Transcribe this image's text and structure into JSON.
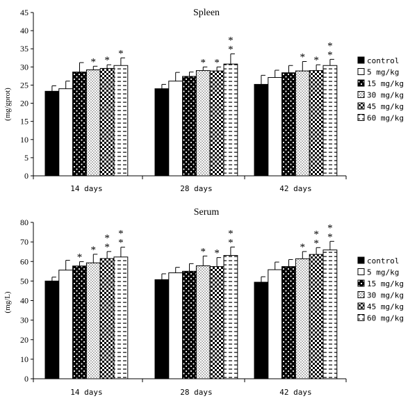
{
  "chart_data": [
    {
      "type": "bar",
      "title": "Spleen",
      "ylabel": "(mg/gprot)",
      "xlabel": "",
      "ylim": [
        0,
        45
      ],
      "yticks": [
        "0",
        "5",
        "10",
        "15",
        "20",
        "25",
        "30",
        "35",
        "40",
        "45"
      ],
      "categories": [
        "14 days",
        "28 days",
        "42 days"
      ],
      "legend": "right",
      "grid": false,
      "series": [
        {
          "name": "control",
          "values": [
            23.3,
            24.0,
            25.2
          ],
          "errors": [
            1.5,
            1.2,
            2.5
          ],
          "stars": [
            0,
            0,
            0
          ],
          "pattern": "black"
        },
        {
          "name": "5 mg/kg",
          "values": [
            24.0,
            26.1,
            27.1
          ],
          "errors": [
            2.1,
            2.4,
            2.0
          ],
          "stars": [
            0,
            0,
            0
          ],
          "pattern": "white"
        },
        {
          "name": "15 mg/kg",
          "values": [
            28.6,
            27.4,
            28.4
          ],
          "errors": [
            2.6,
            1.2,
            2.0
          ],
          "stars": [
            0,
            0,
            0
          ],
          "pattern": "dots"
        },
        {
          "name": "30 mg/kg",
          "values": [
            29.2,
            29.0,
            28.9
          ],
          "errors": [
            1.0,
            1.0,
            2.6
          ],
          "stars": [
            1,
            1,
            1
          ],
          "pattern": "fine"
        },
        {
          "name": "45 mg/kg",
          "values": [
            29.6,
            28.9,
            29.0
          ],
          "errors": [
            1.0,
            1.1,
            1.6
          ],
          "stars": [
            1,
            1,
            1
          ],
          "pattern": "check"
        },
        {
          "name": "60 mg/kg",
          "values": [
            30.4,
            30.8,
            30.4
          ],
          "errors": [
            2.1,
            2.8,
            1.7
          ],
          "stars": [
            1,
            2,
            2
          ],
          "pattern": "dash"
        }
      ]
    },
    {
      "type": "bar",
      "title": "Serum",
      "ylabel": "(mg/L)",
      "xlabel": "",
      "ylim": [
        0,
        80
      ],
      "yticks": [
        "0",
        "10",
        "20",
        "30",
        "40",
        "50",
        "60",
        "70",
        "80"
      ],
      "categories": [
        "14 days",
        "28 days",
        "42 days"
      ],
      "legend": "right",
      "grid": false,
      "series": [
        {
          "name": "control",
          "values": [
            50.0,
            50.7,
            49.4
          ],
          "errors": [
            2.0,
            3.0,
            2.8
          ],
          "stars": [
            0,
            0,
            0
          ],
          "pattern": "black"
        },
        {
          "name": "5 mg/kg",
          "values": [
            55.6,
            54.2,
            55.8
          ],
          "errors": [
            5.0,
            2.8,
            3.9
          ],
          "stars": [
            0,
            0,
            0
          ],
          "pattern": "white"
        },
        {
          "name": "15 mg/kg",
          "values": [
            57.7,
            55.0,
            57.4
          ],
          "errors": [
            2.2,
            3.9,
            3.6
          ],
          "stars": [
            1,
            0,
            0
          ],
          "pattern": "dots"
        },
        {
          "name": "30 mg/kg",
          "values": [
            59.3,
            57.8,
            61.4
          ],
          "errors": [
            4.4,
            5.0,
            3.7
          ],
          "stars": [
            1,
            1,
            1
          ],
          "pattern": "fine"
        },
        {
          "name": "45 mg/kg",
          "values": [
            61.5,
            57.4,
            63.6
          ],
          "errors": [
            3.6,
            4.6,
            3.5
          ],
          "stars": [
            2,
            1,
            2
          ],
          "pattern": "check"
        },
        {
          "name": "60 mg/kg",
          "values": [
            62.3,
            63.1,
            65.9
          ],
          "errors": [
            5.0,
            4.3,
            4.4
          ],
          "stars": [
            2,
            2,
            2
          ],
          "pattern": "dash"
        }
      ]
    }
  ]
}
